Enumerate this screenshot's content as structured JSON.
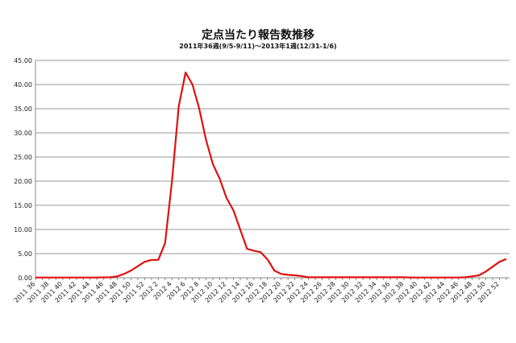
{
  "chart_data": {
    "type": "line",
    "title": "定点当たり報告数推移",
    "subtitle": "2011年36週(9/5-9/11)～2013年1週(12/31-1/6)",
    "xlabel": "",
    "ylabel": "",
    "ylim": [
      0,
      45
    ],
    "yticks": [
      "0.00",
      "5.00",
      "10.00",
      "15.00",
      "20.00",
      "25.00",
      "30.00",
      "35.00",
      "40.00",
      "45.00"
    ],
    "grid": true,
    "legend": "none",
    "line_color": "#e01010",
    "x": [
      "2011 36",
      "2011 37",
      "2011 38",
      "2011 39",
      "2011 40",
      "2011 41",
      "2011 42",
      "2011 43",
      "2011 44",
      "2011 45",
      "2011 46",
      "2011 47",
      "2011 48",
      "2011 49",
      "2011 50",
      "2011 51",
      "2011 52",
      "2012 1",
      "2012 2",
      "2012 3",
      "2012 4",
      "2012 5",
      "2012 6",
      "2012 7",
      "2012 8",
      "2012 9",
      "2012 10",
      "2012 11",
      "2012 12",
      "2012 13",
      "2012 14",
      "2012 15",
      "2012 16",
      "2012 17",
      "2012 18",
      "2012 19",
      "2012 20",
      "2012 21",
      "2012 22",
      "2012 23",
      "2012 24",
      "2012 25",
      "2012 26",
      "2012 27",
      "2012 28",
      "2012 29",
      "2012 30",
      "2012 31",
      "2012 32",
      "2012 33",
      "2012 34",
      "2012 35",
      "2012 36",
      "2012 37",
      "2012 38",
      "2012 39",
      "2012 40",
      "2012 41",
      "2012 42",
      "2012 43",
      "2012 44",
      "2012 45",
      "2012 46",
      "2012 47",
      "2012 48",
      "2012 49",
      "2012 50",
      "2012 51",
      "2012 52",
      "2013 1"
    ],
    "xtick_labels": [
      "2011 36",
      "2011 38",
      "2011 40",
      "2011 42",
      "2011 44",
      "2011 46",
      "2011 48",
      "2011 50",
      "2011 52",
      "2012 2",
      "2012 4",
      "2012 6",
      "2012 8",
      "2012 10",
      "2012 12",
      "2012 14",
      "2012 16",
      "2012 18",
      "2012 20",
      "2012 22",
      "2012 24",
      "2012 26",
      "2012 28",
      "2012 30",
      "2012 32",
      "2012 34",
      "2012 36",
      "2012 38",
      "2012 40",
      "2012 42",
      "2012 44",
      "2012 46",
      "2012 48",
      "2012 50",
      "2012 52"
    ],
    "values": [
      0.05,
      0.05,
      0.05,
      0.05,
      0.05,
      0.05,
      0.05,
      0.05,
      0.05,
      0.05,
      0.08,
      0.1,
      0.3,
      0.8,
      1.5,
      2.4,
      3.3,
      3.7,
      3.7,
      7.2,
      20.0,
      35.5,
      42.5,
      40.0,
      35.0,
      28.5,
      23.5,
      20.5,
      16.5,
      14.0,
      10.0,
      6.0,
      5.6,
      5.3,
      3.8,
      1.5,
      0.8,
      0.6,
      0.5,
      0.35,
      0.1,
      0.1,
      0.1,
      0.1,
      0.1,
      0.1,
      0.1,
      0.1,
      0.1,
      0.1,
      0.1,
      0.1,
      0.1,
      0.1,
      0.1,
      0.05,
      0.05,
      0.05,
      0.05,
      0.05,
      0.05,
      0.05,
      0.05,
      0.1,
      0.3,
      0.5,
      1.3,
      2.3,
      3.3,
      3.9
    ]
  }
}
